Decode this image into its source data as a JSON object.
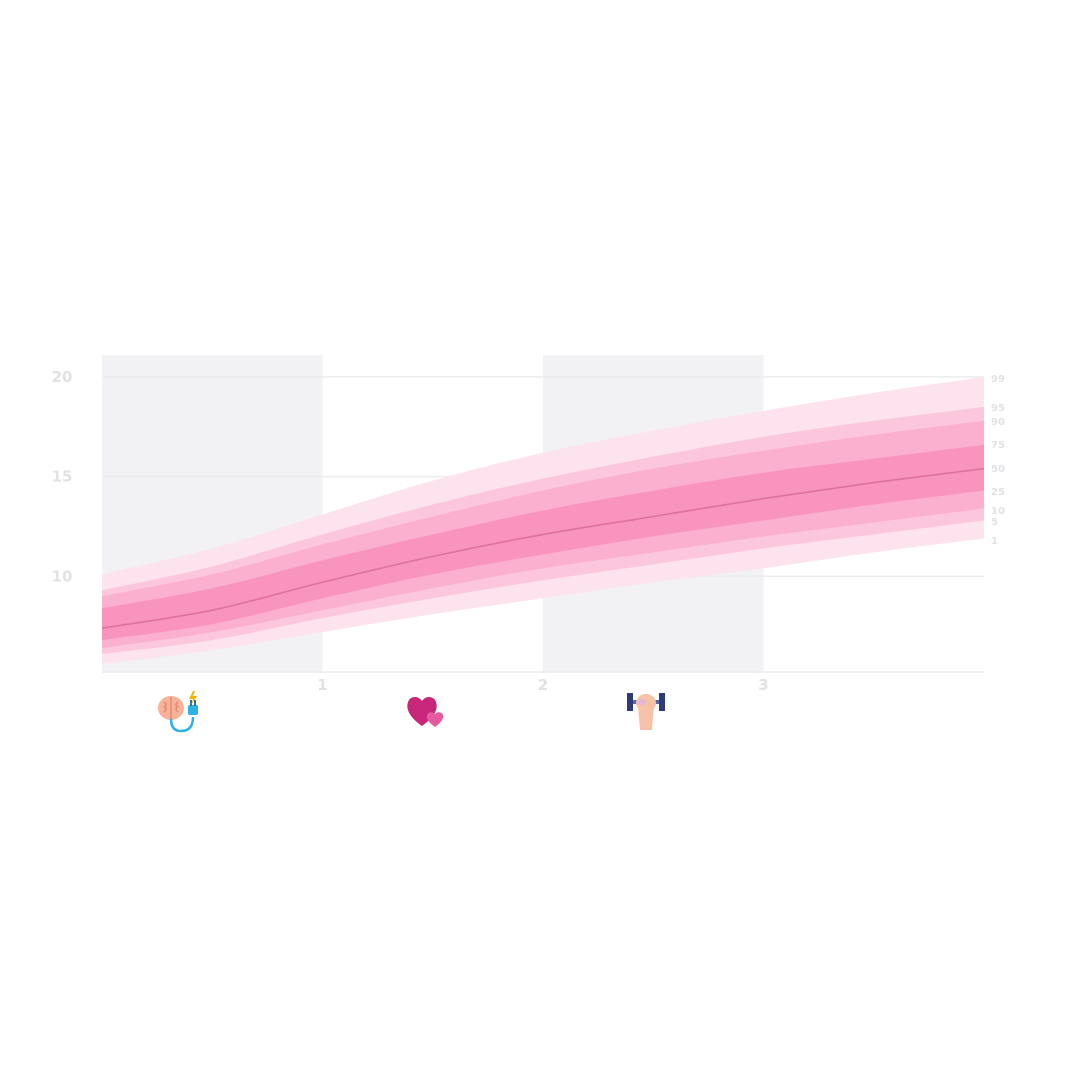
{
  "chart_data": {
    "type": "area",
    "title": "",
    "xlabel": "",
    "ylabel": "",
    "xlim": [
      0,
      4
    ],
    "ylim": [
      5.2,
      21.1
    ],
    "x_ticks": [
      "1",
      "2",
      "3"
    ],
    "y_ticks": [
      "10",
      "15",
      "20"
    ],
    "grid": true,
    "shaded_x_ranges": [
      [
        0,
        1
      ],
      [
        2,
        3
      ]
    ],
    "x": [
      0,
      0.5,
      1,
      1.5,
      2,
      2.5,
      3,
      3.5,
      4
    ],
    "percentile_labels": [
      "99",
      "95",
      "90",
      "75",
      "50",
      "25",
      "10",
      "5",
      "1"
    ],
    "percentile_curves": [
      {
        "name": "99",
        "values": [
          10.1,
          11.4,
          13.1,
          14.8,
          16.2,
          17.3,
          18.3,
          19.2,
          20.0
        ]
      },
      {
        "name": "95",
        "values": [
          9.3,
          10.5,
          12.1,
          13.6,
          14.9,
          16.0,
          17.0,
          17.8,
          18.5
        ]
      },
      {
        "name": "90",
        "values": [
          9.0,
          10.1,
          11.6,
          13.0,
          14.3,
          15.4,
          16.3,
          17.1,
          17.8
        ]
      },
      {
        "name": "75",
        "values": [
          8.4,
          9.4,
          10.8,
          12.1,
          13.3,
          14.3,
          15.2,
          15.9,
          16.6
        ]
      },
      {
        "name": "50",
        "values": [
          7.4,
          8.3,
          9.7,
          11.0,
          12.1,
          13.0,
          13.9,
          14.7,
          15.4
        ]
      },
      {
        "name": "25",
        "values": [
          6.8,
          7.6,
          8.9,
          10.1,
          11.1,
          12.0,
          12.8,
          13.6,
          14.3
        ]
      },
      {
        "name": "10",
        "values": [
          6.4,
          7.2,
          8.3,
          9.4,
          10.4,
          11.2,
          12.0,
          12.7,
          13.4
        ]
      },
      {
        "name": "5",
        "values": [
          6.1,
          6.8,
          7.9,
          8.9,
          9.8,
          10.6,
          11.4,
          12.1,
          12.8
        ]
      },
      {
        "name": "1",
        "values": [
          5.6,
          6.3,
          7.2,
          8.1,
          8.9,
          9.7,
          10.4,
          11.2,
          11.9
        ]
      }
    ],
    "band_colors": [
      "#fde3ee",
      "#fcc7dc",
      "#fbb0cf",
      "#f994bf"
    ],
    "median_color": "#e0709e"
  },
  "icons": [
    {
      "name": "brain-plug-icon",
      "label": ""
    },
    {
      "name": "hearts-icon",
      "label": ""
    },
    {
      "name": "dumbbell-arm-icon",
      "label": ""
    }
  ]
}
